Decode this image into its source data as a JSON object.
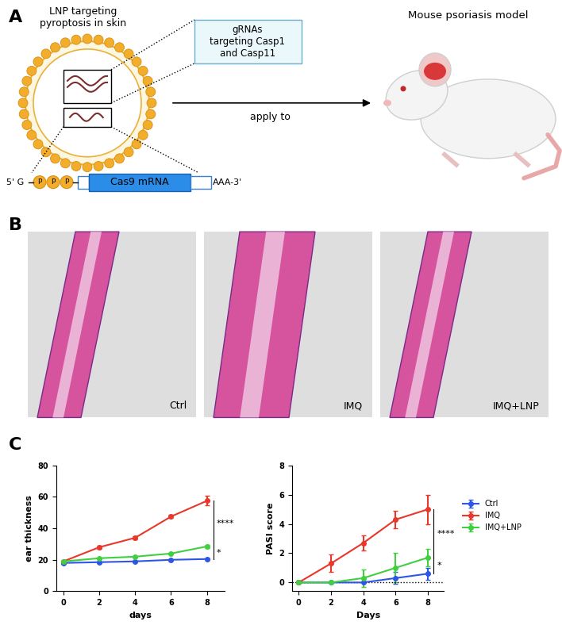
{
  "panel_A": {
    "label": "A",
    "lnp_title": "LNP targeting\npyroptosis in skin",
    "grna_box": "gRNAs\ntargeting Casp1\nand Casp11",
    "mrna": {
      "prefix": "5' G",
      "phosphates": [
        "P",
        "P",
        "P"
      ],
      "gene": "Cas9 mRNA",
      "suffix": "AAA-3'"
    },
    "arrow_label": "apply to",
    "model_title": "Mouse psoriasis model"
  },
  "panel_B": {
    "label": "B",
    "images": [
      "Ctrl",
      "IMQ",
      "IMQ+LNP"
    ]
  },
  "panel_C": {
    "label": "C"
  },
  "chart_data": [
    {
      "type": "line",
      "xlabel": "days",
      "ylabel": "ear thickness",
      "x": [
        0,
        2,
        4,
        6,
        8
      ],
      "xlim": [
        -0.4,
        9
      ],
      "xticks": [
        0,
        2,
        4,
        6,
        8
      ],
      "ylim": [
        0,
        80
      ],
      "yticks": [
        0,
        20,
        40,
        60,
        80
      ],
      "marker": "o",
      "series": [
        {
          "name": "Ctrl",
          "color": "#2f55e6",
          "values": [
            18,
            18.5,
            19,
            20,
            20.5
          ],
          "errors": [
            0.5,
            0.5,
            0.5,
            0.5,
            0.5
          ]
        },
        {
          "name": "IMQ",
          "color": "#e8372b",
          "values": [
            19,
            28,
            34,
            47.5,
            57.5
          ],
          "errors": [
            0.5,
            1,
            1,
            1,
            3
          ]
        },
        {
          "name": "IMQ+LNP",
          "color": "#3fcf3f",
          "values": [
            19,
            21,
            22,
            24,
            28.5
          ],
          "errors": [
            0.5,
            0.5,
            0.5,
            0.5,
            1
          ]
        }
      ],
      "annotations": [
        {
          "text": "****",
          "between": [
            "IMQ",
            "IMQ+LNP"
          ]
        },
        {
          "text": "*",
          "between": [
            "IMQ+LNP",
            "Ctrl"
          ]
        }
      ]
    },
    {
      "type": "line",
      "xlabel": "Days",
      "ylabel": "PASI score",
      "x": [
        0,
        2,
        4,
        6,
        8
      ],
      "xlim": [
        -0.4,
        9
      ],
      "xticks": [
        0,
        2,
        4,
        6,
        8
      ],
      "ylim": [
        -0.6,
        8
      ],
      "yticks": [
        0,
        2,
        4,
        6,
        8
      ],
      "marker": "o",
      "hline": 0,
      "legend": "center left",
      "series": [
        {
          "name": "Ctrl",
          "color": "#2f55e6",
          "values": [
            0,
            0,
            0,
            0.3,
            0.6
          ],
          "errors": [
            0,
            0,
            0,
            0.4,
            0.4
          ]
        },
        {
          "name": "IMQ",
          "color": "#e8372b",
          "values": [
            0,
            1.3,
            2.7,
            4.3,
            5.0
          ],
          "errors": [
            0,
            0.6,
            0.5,
            0.6,
            1.0
          ]
        },
        {
          "name": "IMQ+LNP",
          "color": "#3fcf3f",
          "values": [
            0,
            0,
            0.3,
            1.0,
            1.7
          ],
          "errors": [
            0,
            0,
            0.6,
            1.0,
            0.6
          ]
        }
      ],
      "annotations": [
        {
          "text": "****",
          "between": [
            "IMQ",
            "IMQ+LNP"
          ]
        },
        {
          "text": "*",
          "between": [
            "IMQ+LNP",
            "Ctrl"
          ]
        }
      ]
    }
  ]
}
